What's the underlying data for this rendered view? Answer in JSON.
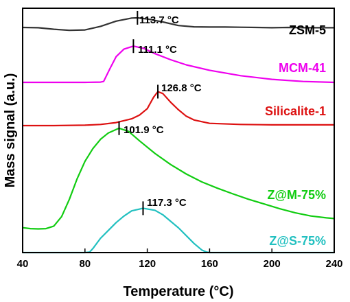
{
  "chart_data": {
    "type": "line",
    "xlabel": "Temperature (°C)",
    "ylabel": "Mass signal (a.u.)",
    "xlim": [
      40,
      240
    ],
    "xticks": [
      40,
      80,
      120,
      160,
      200,
      240
    ],
    "y_ticks_shown": false,
    "grid": false,
    "legend": "labels placed at right end of each curve",
    "series": [
      {
        "name": "ZSM-5",
        "color": "#333333",
        "peak_label": "113.7 °C",
        "peak_x": 113.7,
        "x": [
          40,
          50,
          60,
          70,
          80,
          90,
          100,
          110,
          113.7,
          120,
          130,
          140,
          150,
          160,
          170,
          180,
          190,
          200,
          210,
          220,
          230,
          240
        ],
        "y": [
          0.53,
          0.52,
          0.45,
          0.4,
          0.42,
          0.58,
          0.82,
          0.96,
          0.97,
          0.92,
          0.78,
          0.62,
          0.56,
          0.55,
          0.55,
          0.54,
          0.53,
          0.52,
          0.53,
          0.52,
          0.52,
          0.52
        ]
      },
      {
        "name": "MCM-41",
        "color": "#ee00ee",
        "peak_label": "111.1 °C",
        "peak_x": 111.1,
        "x": [
          40,
          60,
          80,
          90,
          92,
          96,
          100,
          105,
          111.1,
          118,
          125,
          135,
          145,
          160,
          180,
          200,
          220,
          240
        ],
        "y": [
          0.0,
          0.0,
          0.0,
          0.01,
          0.03,
          0.45,
          0.85,
          1.1,
          1.2,
          1.12,
          0.95,
          0.75,
          0.58,
          0.4,
          0.22,
          0.1,
          0.03,
          0.0
        ]
      },
      {
        "name": "Silicalite-1",
        "color": "#dd1111",
        "peak_label": "126.8 °C",
        "peak_x": 126.8,
        "x": [
          40,
          60,
          80,
          90,
          100,
          110,
          115,
          120,
          124,
          126.8,
          130,
          135,
          140,
          145,
          150,
          160,
          180,
          200,
          220,
          240
        ],
        "y": [
          0.0,
          0.0,
          0.01,
          0.03,
          0.08,
          0.18,
          0.28,
          0.45,
          0.75,
          0.9,
          0.85,
          0.62,
          0.42,
          0.25,
          0.15,
          0.06,
          0.03,
          0.02,
          0.02,
          0.02
        ]
      },
      {
        "name": "Z@M-75%",
        "color": "#11cc11",
        "peak_label": "101.9 °C",
        "peak_x": 101.9,
        "x": [
          40,
          45,
          50,
          55,
          60,
          65,
          70,
          75,
          80,
          85,
          90,
          95,
          101.9,
          108,
          115,
          125,
          135,
          145,
          155,
          165,
          175,
          185,
          195,
          205,
          215,
          225,
          235,
          240
        ],
        "y": [
          0.05,
          0.02,
          0.01,
          0.02,
          0.1,
          0.4,
          0.95,
          1.6,
          2.15,
          2.55,
          2.85,
          3.05,
          3.2,
          3.1,
          2.8,
          2.4,
          2.05,
          1.75,
          1.5,
          1.3,
          1.12,
          0.95,
          0.8,
          0.65,
          0.52,
          0.42,
          0.36,
          0.34
        ]
      },
      {
        "name": "Z@S-75%",
        "color": "#22c0c0",
        "peak_label": "117.3 °C",
        "peak_x": 117.3,
        "x": [
          40,
          60,
          80,
          83,
          85,
          90,
          95,
          100,
          105,
          110,
          117.3,
          125,
          130,
          135,
          140,
          145,
          150,
          155,
          158,
          160,
          180,
          200,
          220,
          240
        ],
        "y": [
          0.0,
          0.0,
          0.0,
          0.02,
          0.15,
          0.55,
          0.85,
          1.15,
          1.4,
          1.6,
          1.7,
          1.62,
          1.45,
          1.2,
          0.95,
          0.65,
          0.35,
          0.1,
          0.02,
          0.0,
          0.0,
          0.0,
          0.0,
          0.0
        ]
      }
    ]
  }
}
